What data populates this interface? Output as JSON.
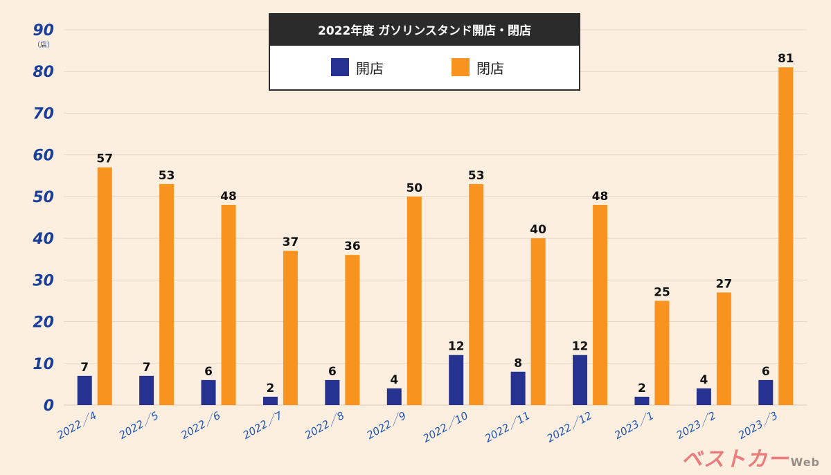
{
  "chart_data": {
    "type": "bar",
    "title": "2022年度 ガソリンスタンド開店・閉店",
    "y_unit": "（店）",
    "ylim": [
      0,
      90
    ],
    "yticks": [
      0,
      10,
      20,
      30,
      40,
      50,
      60,
      70,
      80,
      90
    ],
    "categories": [
      "2022／4",
      "2022／5",
      "2022／6",
      "2022／7",
      "2022／8",
      "2022／9",
      "2022／10",
      "2022／11",
      "2022／12",
      "2023／1",
      "2023／2",
      "2023／3"
    ],
    "series": [
      {
        "name": "開店",
        "color": "#26328f",
        "values": [
          7,
          7,
          6,
          2,
          6,
          4,
          12,
          8,
          12,
          2,
          4,
          6
        ]
      },
      {
        "name": "閉店",
        "color": "#f7931e",
        "values": [
          57,
          53,
          48,
          37,
          36,
          50,
          53,
          40,
          48,
          25,
          27,
          81
        ]
      }
    ],
    "grid": true,
    "legend_position": "top-center"
  },
  "watermark": {
    "logo_text": "ベストカー",
    "web_text": "Web"
  }
}
